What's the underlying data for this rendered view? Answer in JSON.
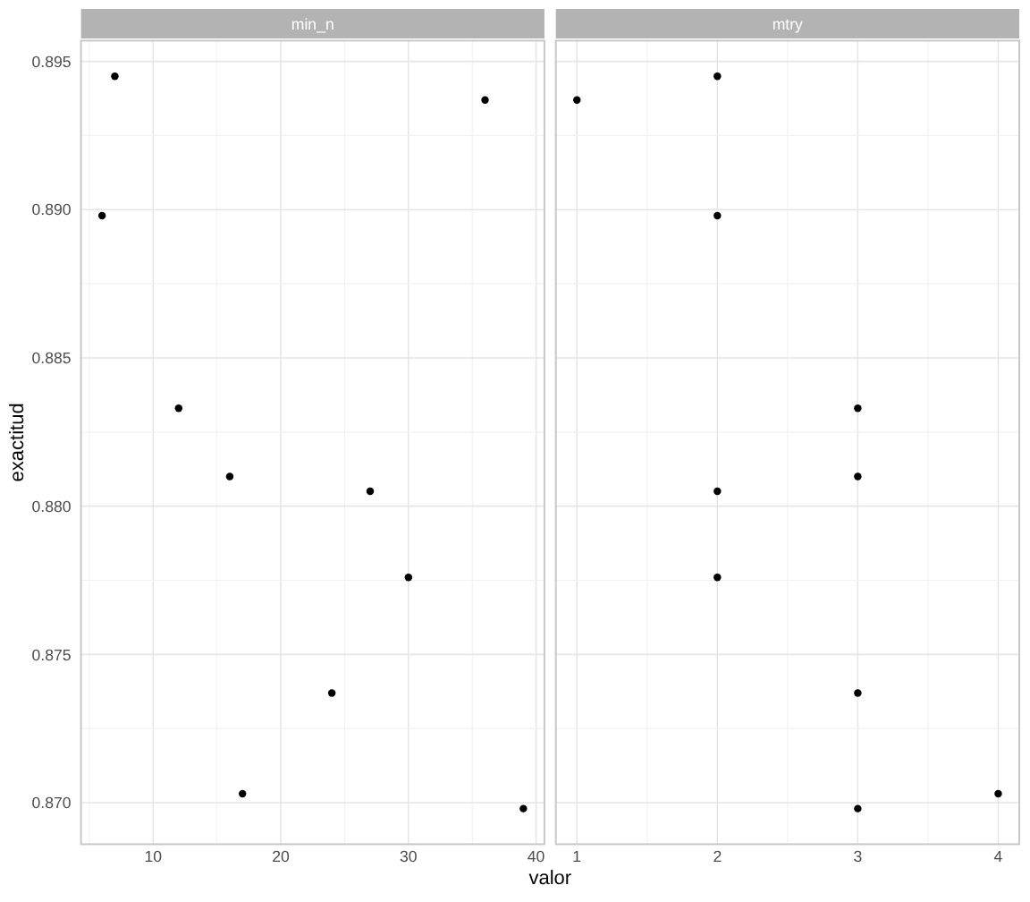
{
  "chart_data": [
    {
      "type": "scatter",
      "title": "min_n",
      "xlabel": "valor",
      "ylabel": "exactitud",
      "x": [
        7,
        6,
        36,
        12,
        16,
        27,
        30,
        24,
        17,
        39
      ],
      "values": [
        0.8945,
        0.8898,
        0.8937,
        0.8833,
        0.881,
        0.8805,
        0.8776,
        0.8737,
        0.8703,
        0.8698
      ],
      "color": "#000000",
      "marker": "circle",
      "grid": true,
      "xlim": [
        4.35,
        40.65
      ],
      "xticks": [
        {
          "value": 5,
          "label": null
        },
        10,
        {
          "value": 15,
          "label": null
        },
        20,
        {
          "value": 25,
          "label": null
        },
        30,
        {
          "value": 35,
          "label": null
        },
        40
      ],
      "ylim": [
        0.8686,
        0.8957
      ],
      "yticks": [
        {
          "value": 0.87,
          "label": "0.870"
        },
        {
          "value": 0.8725,
          "label": null
        },
        0.875,
        {
          "value": 0.8775,
          "label": null
        },
        {
          "value": 0.88,
          "label": "0.880"
        },
        {
          "value": 0.8825,
          "label": null
        },
        0.885,
        {
          "value": 0.8875,
          "label": null
        },
        {
          "value": 0.89,
          "label": "0.890"
        },
        {
          "value": 0.8925,
          "label": null
        },
        0.895
      ]
    },
    {
      "type": "scatter",
      "title": "mtry",
      "x": [
        2,
        1,
        2,
        3,
        3,
        2,
        2,
        3,
        4,
        3
      ],
      "values": [
        0.8945,
        0.8937,
        0.8898,
        0.8833,
        0.881,
        0.8805,
        0.8776,
        0.8737,
        0.8703,
        0.8698
      ],
      "color": "#000000",
      "marker": "circle",
      "grid": true,
      "tick_labels": "x",
      "xlim": [
        0.85,
        4.15
      ],
      "xticks": [
        1,
        {
          "value": 1.5,
          "label": null
        },
        2,
        {
          "value": 2.5,
          "label": null
        },
        3,
        {
          "value": 3.5,
          "label": null
        },
        4
      ],
      "ylim": [
        0.8686,
        0.8957
      ],
      "yticks": [
        0.87,
        {
          "value": 0.8725,
          "label": null
        },
        0.875,
        {
          "value": 0.8775,
          "label": null
        },
        0.88,
        {
          "value": 0.8825,
          "label": null
        },
        0.885,
        {
          "value": 0.8875,
          "label": null
        },
        0.89,
        {
          "value": 0.8925,
          "label": null
        },
        0.895
      ]
    }
  ]
}
